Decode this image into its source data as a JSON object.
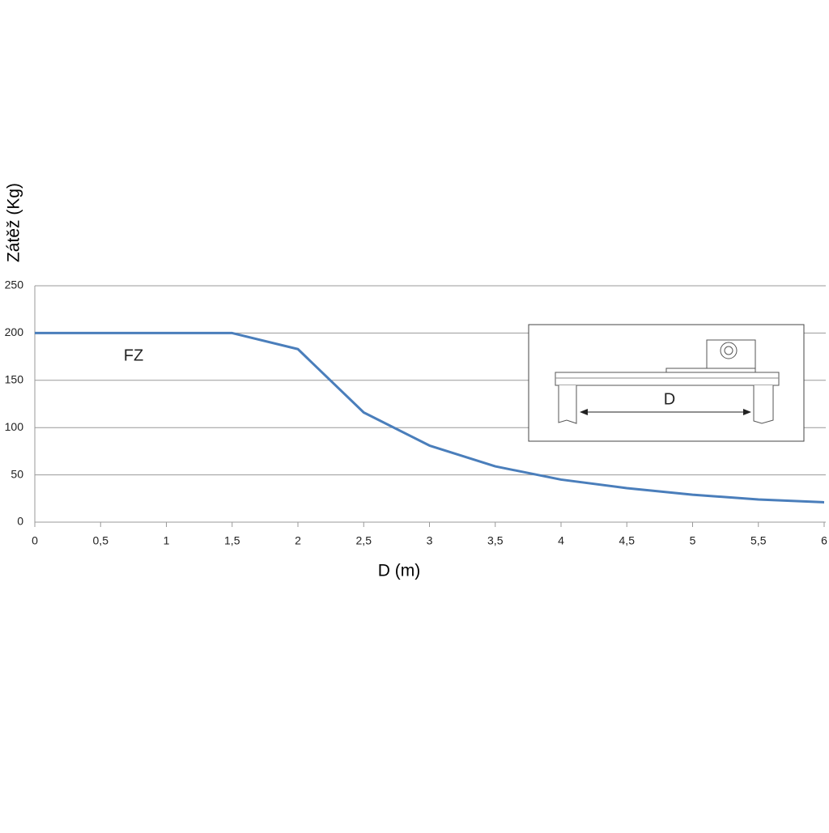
{
  "chart_data": {
    "type": "line",
    "y_label": "Zátěž (Kg)",
    "x_label": "D (m)",
    "x": [
      0,
      0.5,
      1,
      1.5,
      2,
      2.5,
      3,
      3.5,
      4,
      4.5,
      5,
      5.5,
      6
    ],
    "series": [
      {
        "name": "FZ",
        "color": "#4a7ebb",
        "values": [
          200,
          200,
          200,
          200,
          183,
          116,
          81,
          59,
          45,
          36,
          29,
          24,
          21
        ]
      }
    ],
    "xlim": [
      0,
      6
    ],
    "xticks": [
      0,
      {
        "value": 0.5,
        "label": "0,5"
      },
      1,
      {
        "value": 1.5,
        "label": "1,5"
      },
      2,
      {
        "value": 2.5,
        "label": "2,5"
      },
      3,
      {
        "value": 3.5,
        "label": "3,5"
      },
      4,
      {
        "value": 4.5,
        "label": "4,5"
      },
      5,
      {
        "value": 5.5,
        "label": "5,5"
      },
      6
    ],
    "ylim": [
      0,
      250
    ],
    "yticks": [
      0,
      50,
      100,
      150,
      200,
      250
    ],
    "grid": true,
    "inset_label": "D"
  }
}
